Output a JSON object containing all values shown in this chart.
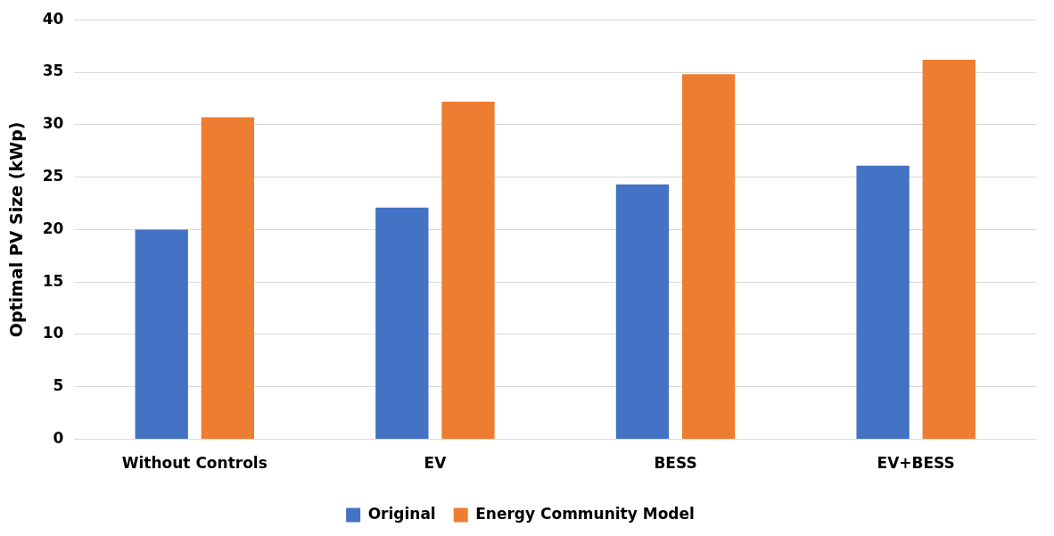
{
  "chart_data": {
    "type": "bar",
    "ylabel": "Optimal PV Size (kWp)",
    "categories": [
      "Without Controls",
      "EV",
      "BESS",
      "EV+BESS"
    ],
    "series": [
      {
        "name": "Original",
        "color": "#4472c4",
        "values": [
          20,
          22.1,
          24.3,
          26.1
        ]
      },
      {
        "name": "Energy Community Model",
        "color": "#ed7d31",
        "values": [
          30.7,
          32.2,
          34.8,
          36.2
        ]
      }
    ],
    "ylim": [
      0,
      40
    ],
    "yticks": [
      0,
      5,
      10,
      15,
      20,
      25,
      30,
      35,
      40
    ],
    "grid": "y",
    "legend": "bottom"
  }
}
